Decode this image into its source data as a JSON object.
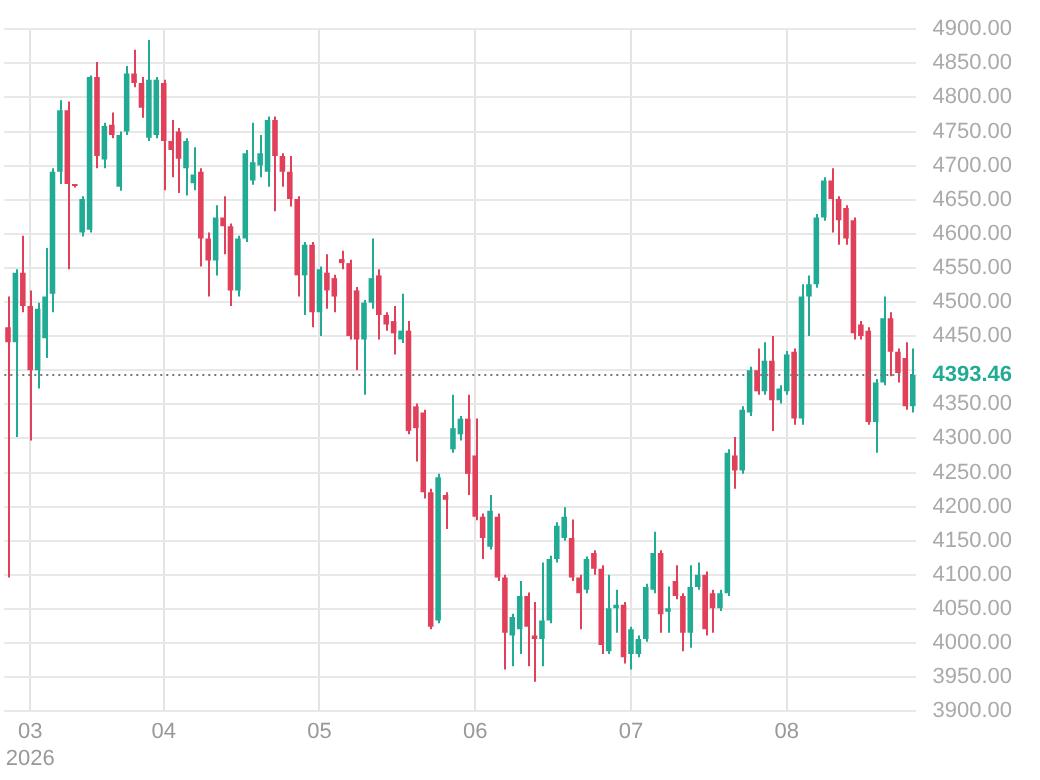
{
  "chart_data": {
    "type": "candlestick",
    "categories": [
      null,
      null,
      null,
      "03\n2026",
      null,
      null,
      null,
      null,
      null,
      null,
      null,
      null,
      null,
      null,
      null,
      null,
      null,
      null,
      null,
      null,
      null,
      "04",
      null,
      null,
      null,
      null,
      null,
      null,
      null,
      null,
      null,
      null,
      null,
      null,
      null,
      null,
      null,
      null,
      null,
      null,
      null,
      null,
      "05",
      null,
      null,
      null,
      null,
      null,
      null,
      null,
      null,
      null,
      null,
      null,
      null,
      null,
      null,
      null,
      null,
      null,
      null,
      null,
      null,
      "06",
      null,
      null,
      null,
      null,
      null,
      null,
      null,
      null,
      null,
      null,
      null,
      null,
      null,
      null,
      null,
      null,
      null,
      null,
      null,
      null,
      "07",
      null,
      null,
      null,
      null,
      null,
      null,
      null,
      null,
      null,
      null,
      null,
      null,
      null,
      null,
      null,
      null,
      null,
      null,
      null,
      null,
      "08",
      null,
      null,
      null,
      null,
      null,
      null,
      null,
      null,
      null,
      null,
      null,
      null,
      null,
      null,
      null,
      null,
      null
    ],
    "ohlc": [
      [
        4463,
        4508,
        4096,
        4441
      ],
      [
        4441,
        4548,
        4302,
        4543
      ],
      [
        4543,
        4597,
        4485,
        4494
      ],
      [
        4494,
        4517,
        4297,
        4400
      ],
      [
        4400,
        4499,
        4373,
        4490
      ],
      [
        4447,
        4579,
        4418,
        4508
      ],
      [
        4512,
        4696,
        4485,
        4691
      ],
      [
        4691,
        4796,
        4673,
        4781
      ],
      [
        4781,
        4794,
        4548,
        4673
      ],
      [
        4672,
        4673,
        4668,
        4670
      ],
      [
        4602,
        4655,
        4596,
        4651
      ],
      [
        4606,
        4832,
        4602,
        4830
      ],
      [
        4830,
        4852,
        4696,
        4714
      ],
      [
        4709,
        4763,
        4696,
        4758
      ],
      [
        4760,
        4778,
        4740,
        4745
      ],
      [
        4669,
        4750,
        4663,
        4745
      ],
      [
        4750,
        4846,
        4745,
        4835
      ],
      [
        4835,
        4870,
        4815,
        4821
      ],
      [
        4821,
        4830,
        4770,
        4785
      ],
      [
        4741,
        4884,
        4736,
        4826
      ],
      [
        4745,
        4830,
        4740,
        4826
      ],
      [
        4821,
        4826,
        4664,
        4736
      ],
      [
        4736,
        4767,
        4683,
        4723
      ],
      [
        4750,
        4755,
        4660,
        4710
      ],
      [
        4696,
        4740,
        4656,
        4736
      ],
      [
        4674,
        4727,
        4664,
        4687
      ],
      [
        4691,
        4696,
        4552,
        4593
      ],
      [
        4593,
        4602,
        4508,
        4561
      ],
      [
        4561,
        4642,
        4539,
        4624
      ],
      [
        4624,
        4655,
        4570,
        4611
      ],
      [
        4611,
        4615,
        4494,
        4517
      ],
      [
        4517,
        4597,
        4508,
        4593
      ],
      [
        4593,
        4723,
        4588,
        4718
      ],
      [
        4678,
        4763,
        4672,
        4705
      ],
      [
        4700,
        4745,
        4683,
        4718
      ],
      [
        4691,
        4772,
        4669,
        4767
      ],
      [
        4767,
        4772,
        4633,
        4714
      ],
      [
        4714,
        4718,
        4669,
        4691
      ],
      [
        4691,
        4714,
        4640,
        4651
      ],
      [
        4651,
        4655,
        4508,
        4539
      ],
      [
        4539,
        4588,
        4481,
        4584
      ],
      [
        4584,
        4588,
        4463,
        4485
      ],
      [
        4485,
        4552,
        4450,
        4548
      ],
      [
        4543,
        4570,
        4490,
        4517
      ],
      [
        4535,
        4540,
        4485,
        4508
      ],
      [
        4563,
        4575,
        4548,
        4557
      ],
      [
        4557,
        4562,
        4445,
        4450
      ],
      [
        4517,
        4522,
        4400,
        4445
      ],
      [
        4445,
        4503,
        4364,
        4499
      ],
      [
        4499,
        4593,
        4490,
        4535
      ],
      [
        4539,
        4548,
        4445,
        4481
      ],
      [
        4481,
        4485,
        4458,
        4467
      ],
      [
        4472,
        4494,
        4423,
        4454
      ],
      [
        4445,
        4512,
        4440,
        4458
      ],
      [
        4458,
        4472,
        4306,
        4311
      ],
      [
        4347,
        4351,
        4266,
        4315
      ],
      [
        4338,
        4342,
        4212,
        4221
      ],
      [
        4221,
        4226,
        4020,
        4024
      ],
      [
        4033,
        4248,
        4029,
        4243
      ],
      [
        4217,
        4221,
        4167,
        4210
      ],
      [
        4284,
        4364,
        4279,
        4315
      ],
      [
        4306,
        4333,
        4297,
        4329
      ],
      [
        4329,
        4364,
        4217,
        4248
      ],
      [
        4275,
        4329,
        4180,
        4185
      ],
      [
        4185,
        4190,
        4123,
        4154
      ],
      [
        4141,
        4217,
        4137,
        4194
      ],
      [
        4185,
        4190,
        4091,
        4096
      ],
      [
        4096,
        4100,
        3961,
        4015
      ],
      [
        4011,
        4043,
        3966,
        4038
      ],
      [
        4020,
        4091,
        3984,
        4069
      ],
      [
        4069,
        4074,
        3966,
        4024
      ],
      [
        4011,
        4060,
        3943,
        4006
      ],
      [
        4006,
        4118,
        3966,
        4033
      ],
      [
        4033,
        4128,
        4029,
        4123
      ],
      [
        4123,
        4177,
        4118,
        4172
      ],
      [
        4154,
        4199,
        4150,
        4185
      ],
      [
        4154,
        4181,
        4091,
        4096
      ],
      [
        4096,
        4100,
        4020,
        4073
      ],
      [
        4078,
        4127,
        4073,
        4123
      ],
      [
        4132,
        4136,
        4100,
        4109
      ],
      [
        4109,
        4114,
        3984,
        3997
      ],
      [
        3988,
        4100,
        3984,
        4051
      ],
      [
        4051,
        4078,
        4015,
        4056
      ],
      [
        4056,
        4060,
        3970,
        3979
      ],
      [
        3984,
        4024,
        3961,
        4020
      ],
      [
        3984,
        4011,
        3979,
        4006
      ],
      [
        4006,
        4087,
        4002,
        4082
      ],
      [
        4078,
        4163,
        4073,
        4132
      ],
      [
        4132,
        4136,
        4015,
        4042
      ],
      [
        4046,
        4083,
        4015,
        4051
      ],
      [
        4091,
        4114,
        4064,
        4069
      ],
      [
        4069,
        4073,
        3988,
        4015
      ],
      [
        4015,
        4114,
        3993,
        4082
      ],
      [
        4082,
        4118,
        4078,
        4100
      ],
      [
        4100,
        4105,
        4011,
        4020
      ],
      [
        4073,
        4078,
        4015,
        4051
      ],
      [
        4051,
        4078,
        4047,
        4073
      ],
      [
        4073,
        4284,
        4069,
        4279
      ],
      [
        4275,
        4302,
        4226,
        4253
      ],
      [
        4253,
        4347,
        4248,
        4342
      ],
      [
        4338,
        4405,
        4333,
        4400
      ],
      [
        4400,
        4432,
        4364,
        4369
      ],
      [
        4369,
        4441,
        4364,
        4414
      ],
      [
        4414,
        4450,
        4311,
        4356
      ],
      [
        4356,
        4378,
        4351,
        4373
      ],
      [
        4369,
        4428,
        4364,
        4423
      ],
      [
        4427,
        4432,
        4320,
        4329
      ],
      [
        4329,
        4526,
        4320,
        4508
      ],
      [
        4508,
        4539,
        4450,
        4526
      ],
      [
        4526,
        4629,
        4521,
        4624
      ],
      [
        4624,
        4683,
        4619,
        4678
      ],
      [
        4678,
        4696,
        4602,
        4651
      ],
      [
        4651,
        4655,
        4584,
        4620
      ],
      [
        4638,
        4642,
        4584,
        4593
      ],
      [
        4620,
        4624,
        4445,
        4454
      ],
      [
        4467,
        4472,
        4445,
        4450
      ],
      [
        4458,
        4463,
        4320,
        4324
      ],
      [
        4324,
        4387,
        4279,
        4382
      ],
      [
        4382,
        4508,
        4378,
        4476
      ],
      [
        4476,
        4485,
        4391,
        4427
      ],
      [
        4427,
        4432,
        4382,
        4396
      ],
      [
        4418,
        4441,
        4342,
        4347
      ],
      [
        4347,
        4432,
        4338,
        4393.46
      ]
    ],
    "colors": [
      "#e0405a",
      "#22ab94",
      "#e0405a",
      "#e0405a",
      "#22ab94",
      "#22ab94",
      "#22ab94",
      "#22ab94",
      "#e0405a",
      "#e0405a",
      "#22ab94",
      "#22ab94",
      "#e0405a",
      "#22ab94",
      "#e0405a",
      "#22ab94",
      "#22ab94",
      "#e0405a",
      "#e0405a",
      "#22ab94",
      "#22ab94",
      "#e0405a",
      "#e0405a",
      "#e0405a",
      "#22ab94",
      "#22ab94",
      "#e0405a",
      "#e0405a",
      "#22ab94",
      "#e0405a",
      "#e0405a",
      "#22ab94",
      "#22ab94",
      "#22ab94",
      "#22ab94",
      "#22ab94",
      "#e0405a",
      "#e0405a",
      "#e0405a",
      "#e0405a",
      "#22ab94",
      "#e0405a",
      "#22ab94",
      "#e0405a",
      "#e0405a",
      "#e0405a",
      "#e0405a",
      "#e0405a",
      "#22ab94",
      "#22ab94",
      "#e0405a",
      "#e0405a",
      "#e0405a",
      "#22ab94",
      "#e0405a",
      "#e0405a",
      "#e0405a",
      "#e0405a",
      "#22ab94",
      "#e0405a",
      "#22ab94",
      "#22ab94",
      "#e0405a",
      "#e0405a",
      "#e0405a",
      "#22ab94",
      "#e0405a",
      "#e0405a",
      "#22ab94",
      "#22ab94",
      "#e0405a",
      "#e0405a",
      "#22ab94",
      "#22ab94",
      "#22ab94",
      "#22ab94",
      "#e0405a",
      "#e0405a",
      "#22ab94",
      "#e0405a",
      "#e0405a",
      "#22ab94",
      "#22ab94",
      "#e0405a",
      "#22ab94",
      "#22ab94",
      "#22ab94",
      "#22ab94",
      "#e0405a",
      "#22ab94",
      "#e0405a",
      "#e0405a",
      "#22ab94",
      "#22ab94",
      "#e0405a",
      "#e0405a",
      "#22ab94",
      "#22ab94",
      "#e0405a",
      "#22ab94",
      "#22ab94",
      "#e0405a",
      "#22ab94",
      "#e0405a",
      "#22ab94",
      "#22ab94",
      "#e0405a",
      "#22ab94",
      "#22ab94",
      "#22ab94",
      "#22ab94",
      "#e0405a",
      "#e0405a",
      "#e0405a",
      "#e0405a",
      "#e0405a",
      "#e0405a",
      "#22ab94",
      "#22ab94",
      "#e0405a",
      "#e0405a",
      "#e0405a",
      "#22ab94"
    ],
    "ylim": [
      3900,
      4900
    ],
    "yticks": [
      {
        "value": 3900,
        "label": "3900.00"
      },
      {
        "value": 3950,
        "label": "3950.00"
      },
      {
        "value": 4000,
        "label": "4000.00"
      },
      {
        "value": 4050,
        "label": "4050.00"
      },
      {
        "value": 4100,
        "label": "4100.00"
      },
      {
        "value": 4150,
        "label": "4150.00"
      },
      {
        "value": 4200,
        "label": "4200.00"
      },
      {
        "value": 4250,
        "label": "4250.00"
      },
      {
        "value": 4300,
        "label": "4300.00"
      },
      {
        "value": 4350,
        "label": "4350.00"
      },
      {
        "value": 4400,
        "label": null
      },
      {
        "value": 4450,
        "label": "4450.00"
      },
      {
        "value": 4500,
        "label": "4500.00"
      },
      {
        "value": 4550,
        "label": "4550.00"
      },
      {
        "value": 4600,
        "label": "4600.00"
      },
      {
        "value": 4650,
        "label": "4650.00"
      },
      {
        "value": 4700,
        "label": "4700.00"
      },
      {
        "value": 4750,
        "label": "4750.00"
      },
      {
        "value": 4800,
        "label": "4800.00"
      },
      {
        "value": 4850,
        "label": "4850.00"
      },
      {
        "value": 4900,
        "label": "4900.00"
      }
    ],
    "ref_lines": [
      {
        "axis": "y",
        "value": 4393.46,
        "label": "4393.46",
        "color": "#777777",
        "line_style": "dotted"
      }
    ],
    "grid": true
  }
}
